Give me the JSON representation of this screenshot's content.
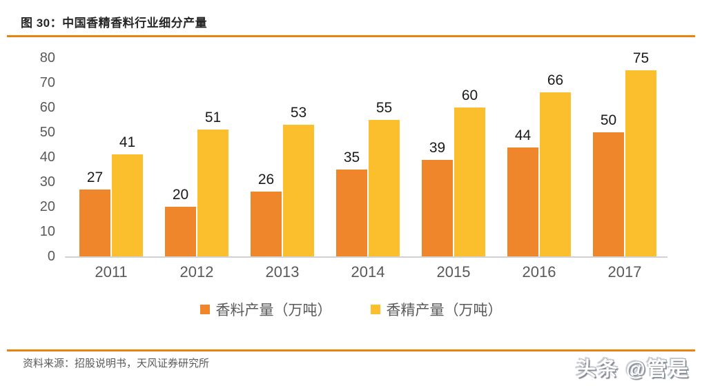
{
  "title": "图 30：中国香精香料行业细分产量",
  "source": "资料来源：招股说明书，天风证券研究所",
  "watermark": "头条 @管是",
  "colors": {
    "accent_rule": "#E8830F",
    "bar_orange": "#F0862B",
    "bar_yellow": "#FBBE2D",
    "axis_text": "#595959",
    "value_text": "#1a1a1a",
    "axis_line": "#d2d2d2"
  },
  "chart_data": {
    "type": "bar",
    "title": "图 30：中国香精香料行业细分产量",
    "categories": [
      "2011",
      "2012",
      "2013",
      "2014",
      "2015",
      "2016",
      "2017"
    ],
    "series": [
      {
        "name": "香料产量（万吨）",
        "color": "#F0862B",
        "values": [
          27,
          20,
          26,
          35,
          39,
          44,
          50
        ]
      },
      {
        "name": "香精产量（万吨）",
        "color": "#FBBE2D",
        "values": [
          41,
          51,
          53,
          55,
          60,
          66,
          75
        ]
      }
    ],
    "xlabel": "",
    "ylabel": "",
    "ylim": [
      0,
      80
    ],
    "yticks": [
      0,
      10,
      20,
      30,
      40,
      50,
      60,
      70,
      80
    ],
    "grid": false,
    "legend_position": "bottom",
    "value_labels": true
  }
}
